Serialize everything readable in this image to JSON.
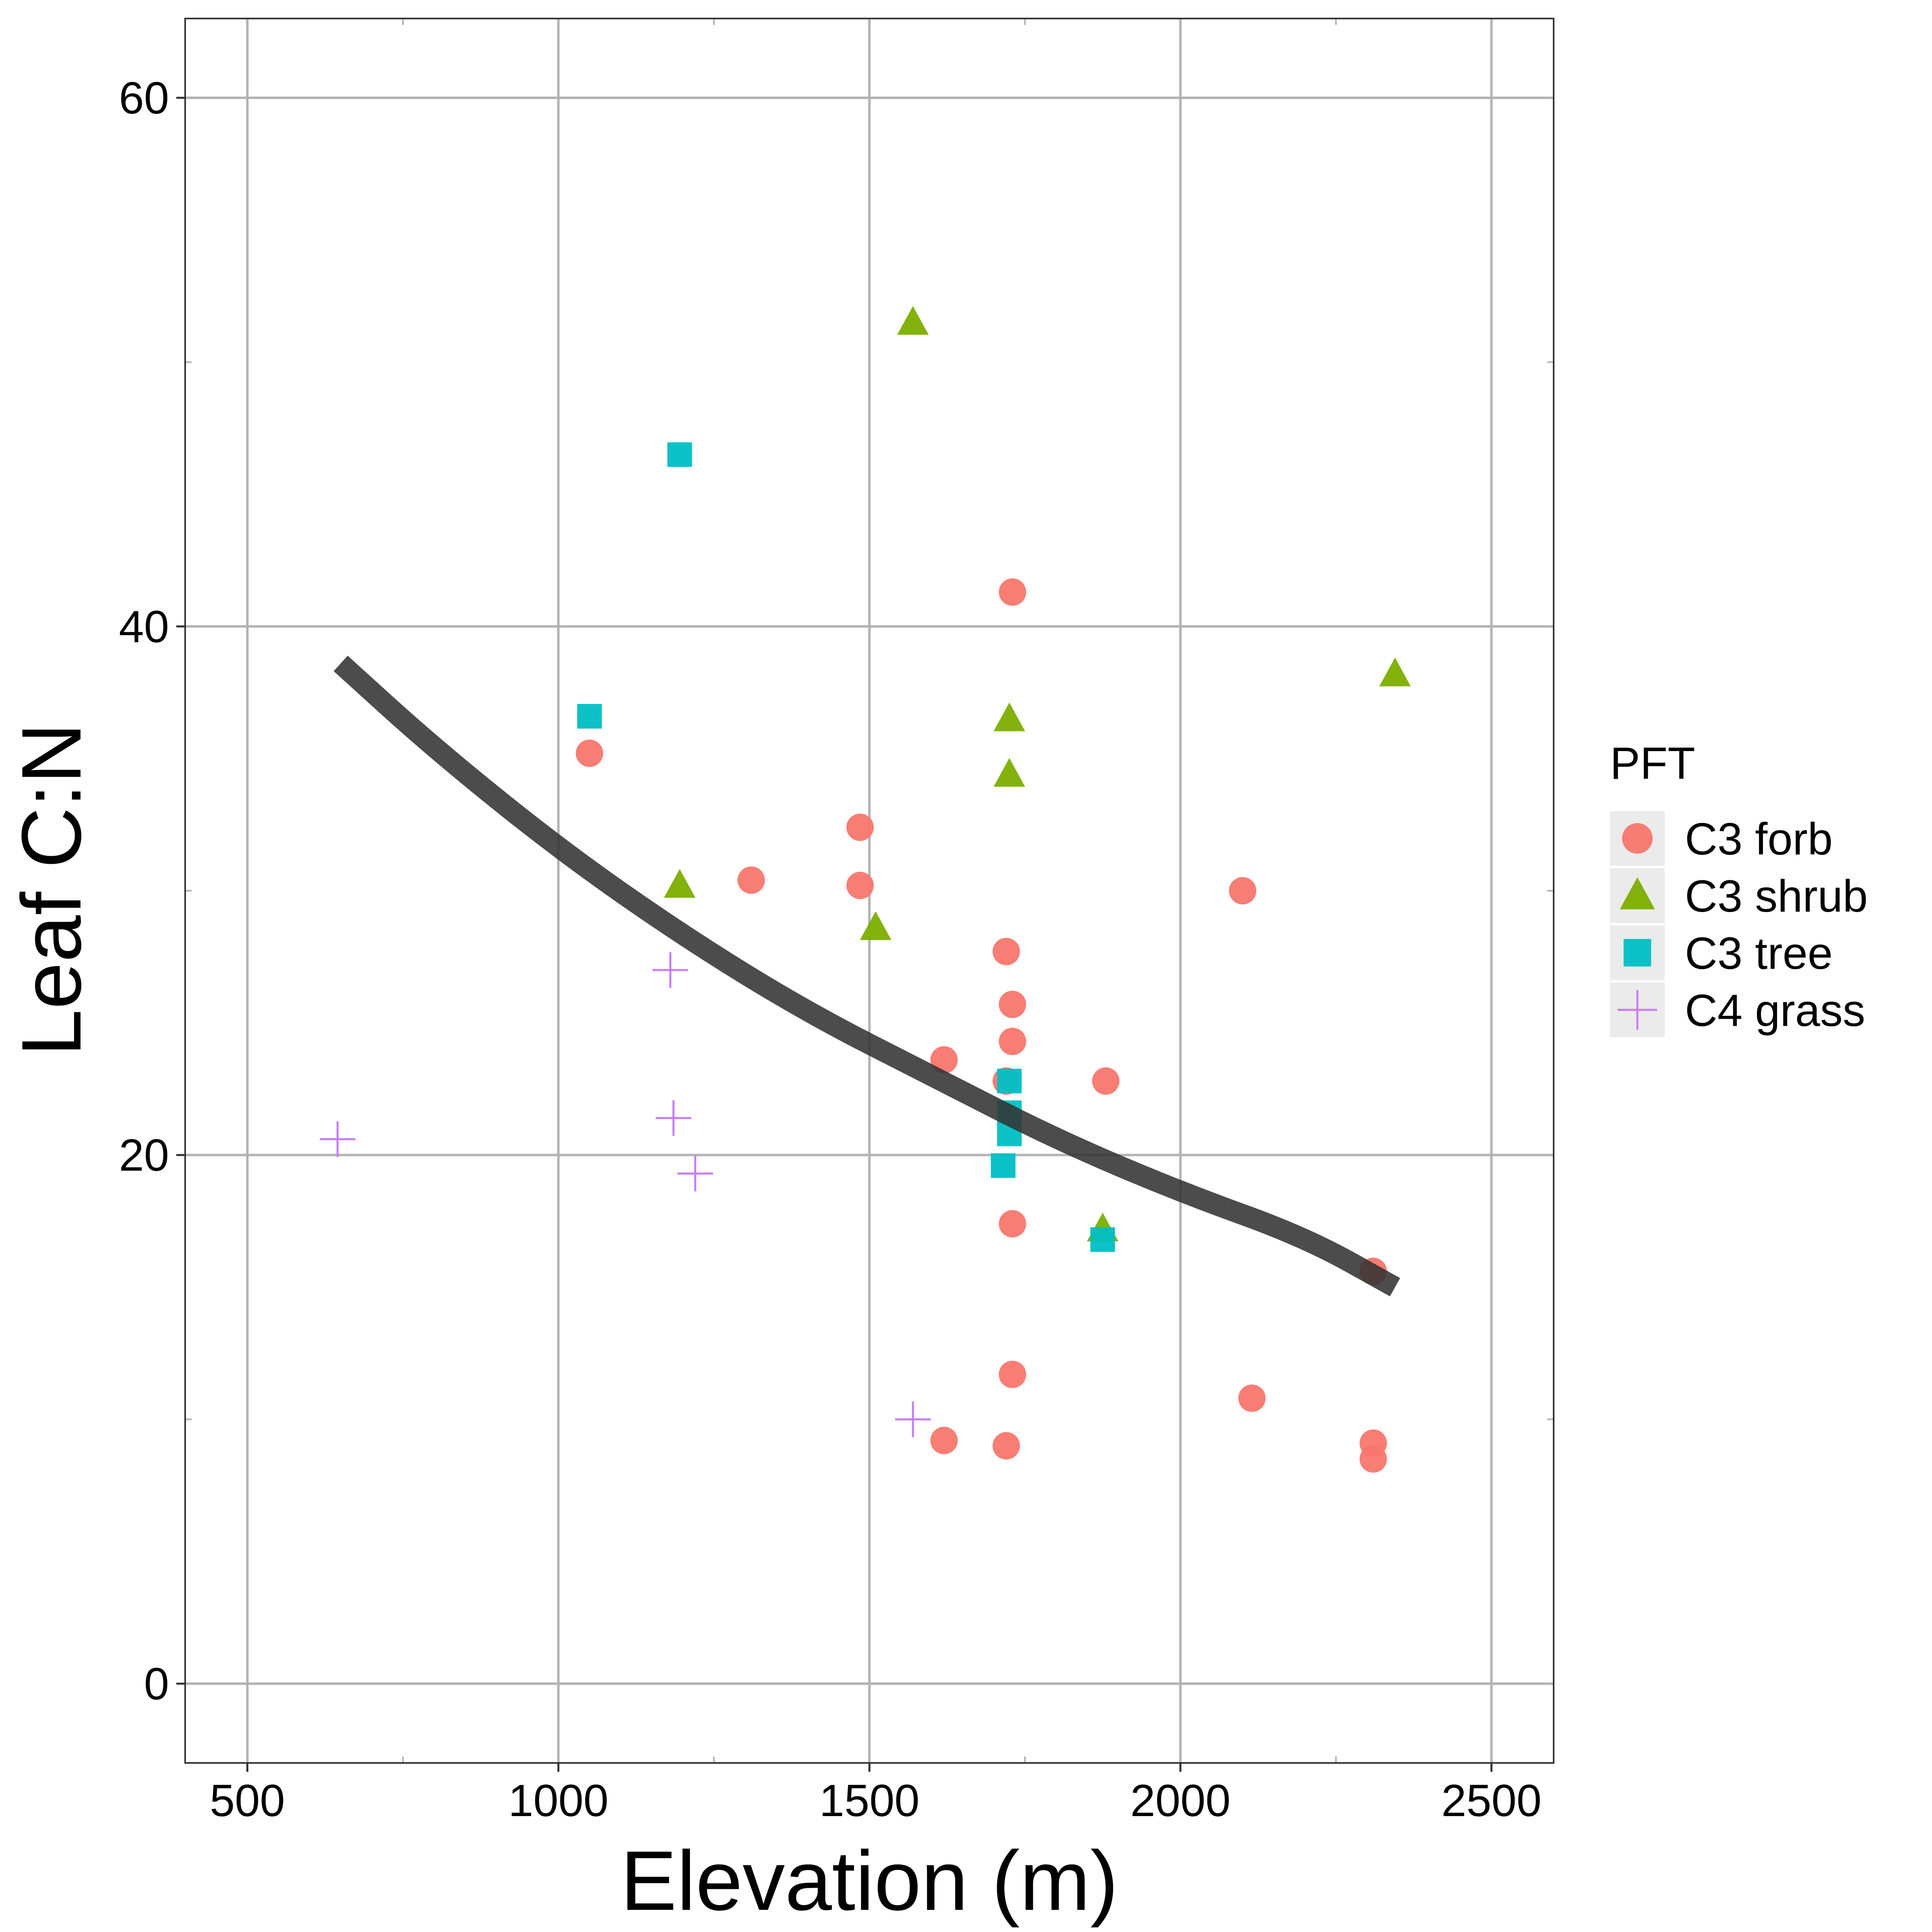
{
  "chart_data": {
    "type": "scatter",
    "xlabel": "Elevation (m)",
    "ylabel": "Leaf C:N",
    "xlim": [
      400,
      2600
    ],
    "ylim": [
      -3,
      63
    ],
    "x_ticks": [
      500,
      1000,
      1500,
      2000,
      2500
    ],
    "x_tick_labels": [
      "500",
      "1000",
      "1500",
      "2000",
      "2500"
    ],
    "y_ticks": [
      0,
      20,
      40,
      60
    ],
    "y_tick_labels": [
      "0",
      "20",
      "40",
      "60"
    ],
    "grid": true,
    "legend": {
      "title": "PFT",
      "placement": "right"
    },
    "series": [
      {
        "name": "C3 forb",
        "marker": "circle",
        "color": "#F8766D",
        "points": [
          [
            1050,
            35.2
          ],
          [
            1310,
            30.4
          ],
          [
            1485,
            32.4
          ],
          [
            1485,
            30.2
          ],
          [
            1620,
            23.6
          ],
          [
            1620,
            9.2
          ],
          [
            1720,
            27.7
          ],
          [
            1720,
            22.8
          ],
          [
            1720,
            9.0
          ],
          [
            1730,
            41.3
          ],
          [
            1730,
            25.7
          ],
          [
            1730,
            24.3
          ],
          [
            1730,
            17.4
          ],
          [
            1730,
            11.7
          ],
          [
            1880,
            22.8
          ],
          [
            2100,
            30.0
          ],
          [
            2115,
            10.8
          ],
          [
            2310,
            15.6
          ],
          [
            2310,
            9.1
          ],
          [
            2310,
            8.5
          ]
        ]
      },
      {
        "name": "C3 shrub",
        "marker": "triangle",
        "color": "#7CAE00",
        "points": [
          [
            1195,
            30.2
          ],
          [
            1510,
            28.6
          ],
          [
            1570,
            51.5
          ],
          [
            1725,
            36.5
          ],
          [
            1725,
            34.4
          ],
          [
            1875,
            17.2
          ],
          [
            2345,
            38.2
          ]
        ]
      },
      {
        "name": "C3 tree",
        "marker": "square",
        "color": "#00BFC4",
        "points": [
          [
            1050,
            36.6
          ],
          [
            1195,
            46.5
          ],
          [
            1725,
            22.8
          ],
          [
            1725,
            21.6
          ],
          [
            1725,
            20.8
          ],
          [
            1715,
            19.6
          ],
          [
            1875,
            16.8
          ]
        ]
      },
      {
        "name": "C4 grass",
        "marker": "plus",
        "color": "#C77CFF",
        "points": [
          [
            645,
            20.6
          ],
          [
            1180,
            27.0
          ],
          [
            1185,
            21.4
          ],
          [
            1220,
            19.3
          ],
          [
            1570,
            10.0
          ]
        ]
      }
    ],
    "fit_line": {
      "color": "#333333",
      "points": [
        [
          650,
          38.6
        ],
        [
          800,
          35.4
        ],
        [
          1000,
          31.6
        ],
        [
          1200,
          28.3
        ],
        [
          1400,
          25.4
        ],
        [
          1600,
          23.0
        ],
        [
          1800,
          20.6
        ],
        [
          2000,
          18.6
        ],
        [
          2200,
          16.9
        ],
        [
          2345,
          15.0
        ]
      ]
    }
  }
}
